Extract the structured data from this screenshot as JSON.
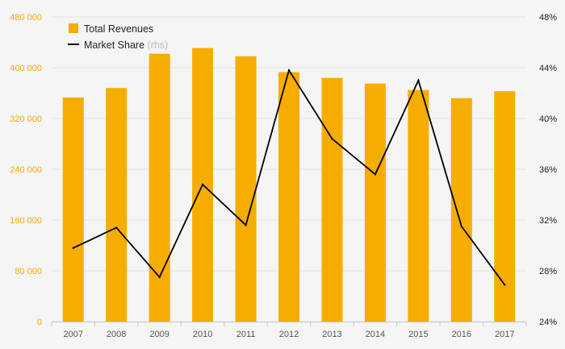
{
  "chart_data": {
    "type": "bar",
    "categories": [
      "2007",
      "2008",
      "2009",
      "2010",
      "2011",
      "2012",
      "2013",
      "2014",
      "2015",
      "2016",
      "2017"
    ],
    "series": [
      {
        "name": "Total Revenues",
        "type": "bar",
        "axis": "left",
        "color": "#f7ad00",
        "values": [
          353000,
          368000,
          422000,
          431000,
          418000,
          393000,
          384000,
          375000,
          365000,
          352000,
          363000
        ]
      },
      {
        "name": "Market Share",
        "name_note": "(rhs)",
        "type": "line",
        "axis": "right",
        "color": "#000000",
        "values": [
          29.8,
          31.4,
          27.5,
          34.8,
          31.6,
          43.8,
          38.4,
          35.6,
          43.0,
          31.5,
          26.9
        ]
      }
    ],
    "y_left": {
      "ylim": [
        0,
        480000
      ],
      "ticks": [
        0,
        80000,
        160000,
        240000,
        320000,
        400000,
        480000
      ],
      "tick_labels": [
        "0",
        "80 000",
        "160 000",
        "240 000",
        "320 000",
        "400 000",
        "480 000"
      ],
      "color": "#f5a800"
    },
    "y_right": {
      "ylim": [
        24,
        48
      ],
      "ticks": [
        24,
        28,
        32,
        36,
        40,
        44,
        48
      ],
      "tick_labels": [
        "24%",
        "28%",
        "32%",
        "36%",
        "40%",
        "44%",
        "48%"
      ]
    },
    "grid": true,
    "legend": "top-left"
  }
}
